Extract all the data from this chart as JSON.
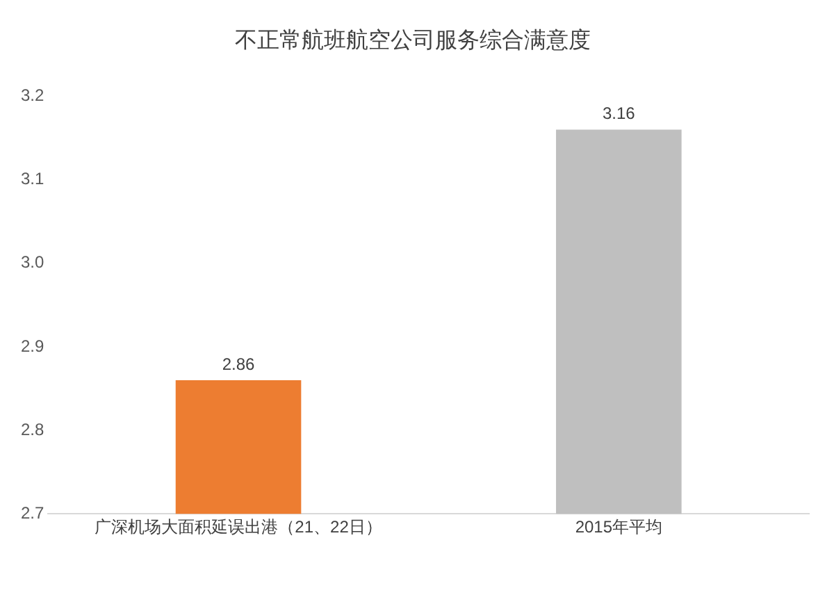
{
  "chart_data": {
    "type": "bar",
    "title": "不正常航班航空公司服务综合满意度",
    "categories": [
      "广深机场大面积延误出港（21、22日）",
      "2015年平均"
    ],
    "values": [
      2.86,
      3.16
    ],
    "colors": [
      "#ed7d31",
      "#bfbfbf"
    ],
    "ylim": [
      2.7,
      3.2
    ],
    "yticks": [
      2.7,
      2.8,
      2.9,
      {
        "value": 3,
        "label": "3.0"
      },
      3.1,
      3.2
    ],
    "data_labels": true,
    "grid": false,
    "legend": false
  }
}
